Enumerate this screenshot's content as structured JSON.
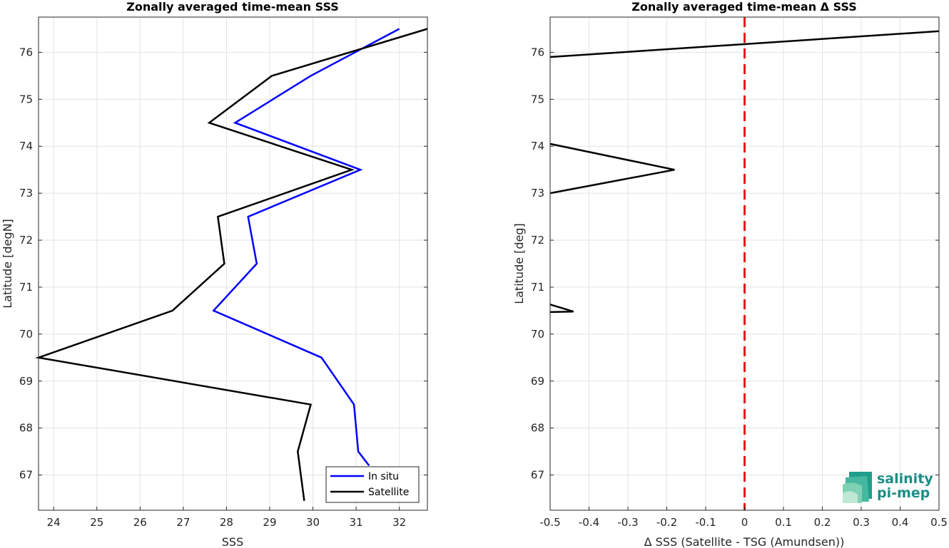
{
  "chart_data": [
    {
      "type": "line",
      "title": "Zonally averaged time-mean SSS",
      "xlabel": "SSS",
      "ylabel": "Latitude [degN]",
      "xlim": [
        23.65,
        32.65
      ],
      "ylim": [
        66.25,
        76.75
      ],
      "xticks": [
        24,
        25,
        26,
        27,
        28,
        29,
        30,
        31,
        32
      ],
      "yticks": [
        67,
        68,
        69,
        70,
        71,
        72,
        73,
        74,
        75,
        76
      ],
      "grid": true,
      "legend_position": "bottom-right",
      "series": [
        {
          "name": "In situ",
          "color": "#0000ff",
          "points": [
            [
              31.3,
              67.2
            ],
            [
              31.05,
              67.5
            ],
            [
              30.95,
              68.5
            ],
            [
              30.2,
              69.5
            ],
            [
              27.7,
              70.5
            ],
            [
              28.7,
              71.5
            ],
            [
              28.5,
              72.5
            ],
            [
              31.1,
              73.5
            ],
            [
              28.2,
              74.5
            ],
            [
              29.95,
              75.5
            ],
            [
              32.0,
              76.5
            ]
          ]
        },
        {
          "name": "Satellite",
          "color": "#000000",
          "points": [
            [
              29.8,
              66.45
            ],
            [
              29.65,
              67.5
            ],
            [
              29.95,
              68.5
            ],
            [
              23.65,
              69.5
            ],
            [
              26.75,
              70.5
            ],
            [
              27.95,
              71.5
            ],
            [
              27.8,
              72.5
            ],
            [
              30.9,
              73.5
            ],
            [
              27.6,
              74.5
            ],
            [
              29.05,
              75.5
            ],
            [
              32.65,
              76.5
            ]
          ]
        }
      ]
    },
    {
      "type": "line",
      "title": "Zonally averaged time-mean Δ SSS",
      "xlabel": "Δ SSS (Satellite - TSG (Amundsen))",
      "ylabel": "Latitude [deg]",
      "xlim": [
        -0.5,
        0.5
      ],
      "ylim": [
        66.25,
        76.75
      ],
      "xticks": [
        "-0.5",
        "-0.4",
        "-0.3",
        "-0.2",
        "-0.1",
        "0",
        "0.1",
        "0.2",
        "0.3",
        "0.4",
        "0.5"
      ],
      "yticks": [
        67,
        68,
        69,
        70,
        71,
        72,
        73,
        74,
        75,
        76
      ],
      "grid": true,
      "reference_line": {
        "x": 0,
        "color": "#e31a1c",
        "style": "dashed"
      },
      "series": [
        {
          "color": "#000000",
          "points": [
            [
              -0.5,
              75.9
            ],
            [
              0.5,
              76.45
            ]
          ]
        },
        {
          "color": "#000000",
          "points": [
            [
              -0.5,
              74.05
            ],
            [
              -0.18,
              73.5
            ],
            [
              -0.5,
              73.0
            ]
          ]
        },
        {
          "color": "#000000",
          "points": [
            [
              -0.5,
              70.63
            ],
            [
              -0.44,
              70.48
            ],
            [
              -0.5,
              70.47
            ]
          ]
        }
      ]
    }
  ],
  "logo": {
    "line1": "salinity",
    "line2": "pi-mep"
  }
}
